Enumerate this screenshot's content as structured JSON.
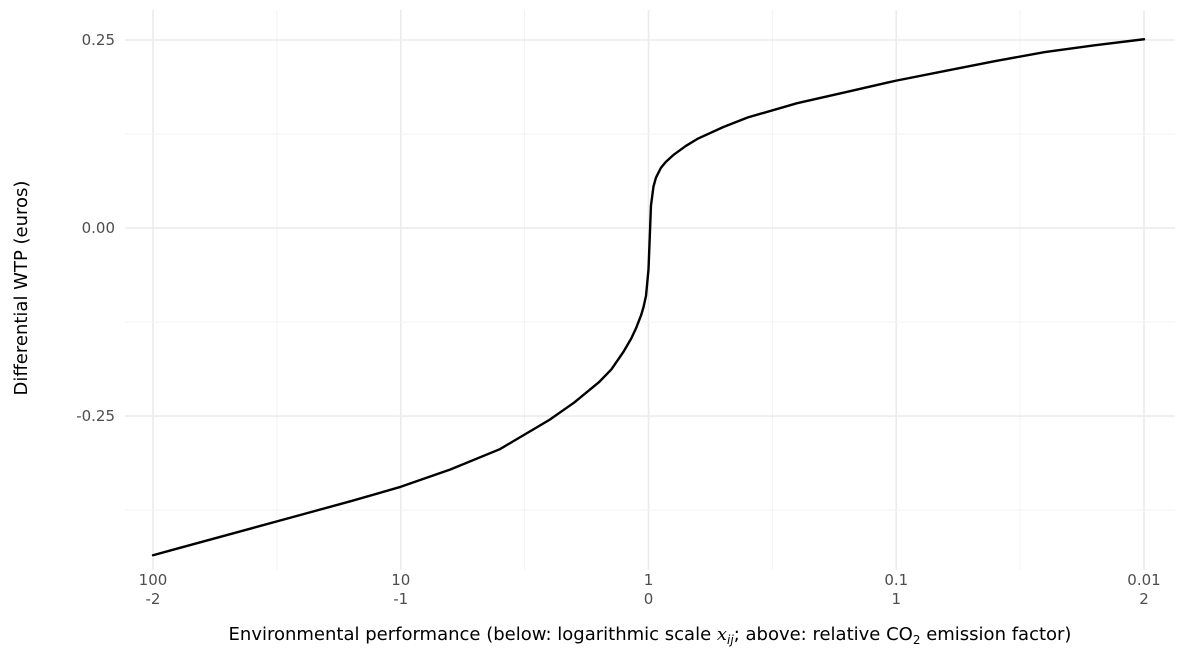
{
  "chart_data": {
    "type": "line",
    "xlabel": {
      "pre": "Environmental performance (below: logarithmic scale ",
      "var": "x",
      "sub": "ij",
      "mid": "; above: relative CO",
      "sub2": "2",
      "post": " emission factor)"
    },
    "ylabel": "Differential WTP (euros)",
    "x_ticks_bottom": [
      "-2",
      "-1",
      "0",
      "1",
      "2"
    ],
    "x_ticks_top": [
      "100",
      "10",
      "1",
      "0.1",
      "0.01"
    ],
    "x_tick_values": [
      -2,
      -1,
      0,
      1,
      2
    ],
    "y_ticks": [
      "0.25",
      "0.00",
      "-0.25"
    ],
    "y_tick_values": [
      0.25,
      0.0,
      -0.25
    ],
    "xlim": [
      -2,
      2
    ],
    "ylim": [
      -0.44,
      0.25
    ],
    "grid": true,
    "series": [
      {
        "x": [
          -2,
          -1.9,
          -1.8,
          -1.6,
          -1.4,
          -1.2,
          -1.0,
          -0.8,
          -0.6,
          -0.4,
          -0.3,
          -0.2,
          -0.15,
          -0.1,
          -0.07,
          -0.05,
          -0.03,
          -0.02,
          -0.01,
          0,
          0.01,
          0.02,
          0.03,
          0.05,
          0.07,
          0.1,
          0.15,
          0.2,
          0.3,
          0.4,
          0.6,
          0.8,
          1.0,
          1.2,
          1.4,
          1.6,
          1.8,
          2.0
        ],
        "y": [
          -0.435,
          -0.426,
          -0.417,
          -0.399,
          -0.381,
          -0.363,
          -0.344,
          -0.321,
          -0.294,
          -0.255,
          -0.232,
          -0.205,
          -0.188,
          -0.164,
          -0.147,
          -0.133,
          -0.116,
          -0.105,
          -0.09,
          -0.055,
          0.03,
          0.055,
          0.067,
          0.08,
          0.088,
          0.097,
          0.109,
          0.119,
          0.134,
          0.147,
          0.166,
          0.181,
          0.196,
          0.209,
          0.222,
          0.234,
          0.243,
          0.251
        ],
        "color": "#000000"
      }
    ]
  }
}
